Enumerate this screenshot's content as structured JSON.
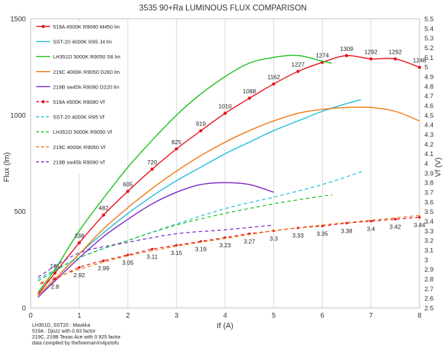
{
  "chart_data": {
    "type": "line",
    "title": "3535 90+Ra LUMINOUS FLUX COMPARISON",
    "xlabel": "If (A)",
    "ylabel": "Flux (lm)",
    "y2label": "Vf (V)",
    "xlim": [
      0,
      8
    ],
    "ylim": [
      0,
      1500
    ],
    "y2lim": [
      2.5,
      5.5
    ],
    "xticks": [
      "0",
      "1",
      "2",
      "3",
      "4",
      "5",
      "6",
      "7",
      "8"
    ],
    "yticks": [
      "0",
      "500",
      "1000",
      "1500"
    ],
    "y2ticks": [
      "2.5",
      "2.6",
      "2.7",
      "2.8",
      "2.9",
      "3",
      "3.1",
      "3.2",
      "3.3",
      "3.4",
      "3.5",
      "3.6",
      "3.7",
      "3.8",
      "3.9",
      "4",
      "4.1",
      "4.2",
      "4.3",
      "4.4",
      "4.5",
      "4.6",
      "4.7",
      "4.8",
      "4.9",
      "5",
      "5.1",
      "5.2",
      "5.3",
      "5.4",
      "5.5"
    ],
    "grid": "vertical",
    "legend_position": "top-left",
    "series": [
      {
        "name": "519A 4500K R9080 M450 lm",
        "axis": "flux",
        "color": "#e8141c",
        "dash": false,
        "markers": true,
        "x": [
          0.15,
          0.5,
          1,
          1.5,
          2,
          2.5,
          3,
          3.5,
          4,
          4.5,
          5,
          5.5,
          6,
          6.5,
          7,
          7.5,
          8
        ],
        "y": [
          70,
          181,
          338,
          482,
          605,
          720,
          825,
          919,
          1010,
          1088,
          1162,
          1227,
          1274,
          1309,
          1292,
          1292,
          1248
        ],
        "labels": [
          "",
          "181",
          "338",
          "482",
          "605",
          "720",
          "825",
          "919",
          "1010",
          "1088",
          "1162",
          "1227",
          "1274",
          "1309",
          "1292",
          "1292",
          "1248"
        ]
      },
      {
        "name": "SST-20 4000K R95 J4 lm",
        "axis": "flux",
        "color": "#22bde0",
        "dash": false,
        "markers": false,
        "x": [
          0.15,
          0.5,
          1,
          1.5,
          2,
          2.5,
          3,
          3.5,
          4,
          4.5,
          5,
          5.5,
          6,
          6.5,
          6.8
        ],
        "y": [
          65,
          150,
          280,
          390,
          490,
          580,
          660,
          730,
          800,
          860,
          920,
          970,
          1020,
          1060,
          1080
        ]
      },
      {
        "name": "LH351D 5000K R9050 S6 lm",
        "axis": "flux",
        "color": "#1ec21e",
        "dash": false,
        "markers": false,
        "x": [
          0.15,
          0.5,
          1,
          1.5,
          2,
          2.5,
          3,
          3.5,
          4,
          4.5,
          5,
          5.5,
          6,
          6.2
        ],
        "y": [
          80,
          200,
          400,
          570,
          730,
          870,
          1000,
          1110,
          1200,
          1270,
          1300,
          1310,
          1280,
          1270
        ]
      },
      {
        "name": "219C 4000K R9050 D260 lm",
        "axis": "flux",
        "color": "#f07a12",
        "dash": false,
        "markers": false,
        "x": [
          0.15,
          0.5,
          1,
          1.5,
          2,
          2.5,
          3,
          3.5,
          4,
          4.5,
          5,
          5.5,
          6,
          6.5,
          7,
          7.5,
          8
        ],
        "y": [
          65,
          150,
          280,
          410,
          520,
          620,
          710,
          790,
          860,
          920,
          970,
          1010,
          1030,
          1040,
          1040,
          1020,
          970
        ]
      },
      {
        "name": "219B sw45k R9080 D220 lm",
        "axis": "flux",
        "color": "#7a28c8",
        "dash": false,
        "markers": false,
        "x": [
          0.15,
          0.5,
          1,
          1.5,
          2,
          2.5,
          3,
          3.5,
          4,
          4.5,
          5
        ],
        "y": [
          55,
          140,
          260,
          370,
          460,
          540,
          600,
          640,
          650,
          640,
          600
        ]
      },
      {
        "name": "519A 4500K R9080 Vf",
        "axis": "vf",
        "color": "#e8141c",
        "dash": true,
        "markers": true,
        "x": [
          0.2,
          0.5,
          1,
          1.5,
          2,
          2.5,
          3,
          3.5,
          4,
          4.5,
          5,
          5.5,
          6,
          6.5,
          7,
          7.5,
          8
        ],
        "y": [
          2.75,
          2.8,
          2.92,
          2.99,
          3.05,
          3.11,
          3.15,
          3.19,
          3.23,
          3.27,
          3.3,
          3.33,
          3.35,
          3.38,
          3.4,
          3.42,
          3.44
        ],
        "labels": [
          "",
          "2.8",
          "2.92",
          "2.99",
          "3.05",
          "3.11",
          "3.15",
          "3.19",
          "3.23",
          "3.27",
          "3.3",
          "3.33",
          "3.35",
          "3.38",
          "3.4",
          "3.42",
          "3.44"
        ]
      },
      {
        "name": "SST-20 4000K R95 Vf",
        "axis": "vf",
        "color": "#22bde0",
        "dash": true,
        "markers": false,
        "x": [
          0.15,
          1,
          2,
          3,
          4,
          5,
          6,
          6.85
        ],
        "y": [
          2.8,
          3.02,
          3.2,
          3.37,
          3.53,
          3.65,
          3.78,
          3.92
        ]
      },
      {
        "name": "LH351D 5000K R9050 Vf",
        "axis": "vf",
        "color": "#1ec21e",
        "dash": true,
        "markers": false,
        "x": [
          0.15,
          1,
          2,
          3,
          4,
          5,
          6,
          6.2
        ],
        "y": [
          2.78,
          3.02,
          3.2,
          3.36,
          3.48,
          3.58,
          3.66,
          3.67
        ]
      },
      {
        "name": "219C 4000K R9050 Vf",
        "axis": "vf",
        "color": "#f07a12",
        "dash": true,
        "markers": false,
        "x": [
          0.2,
          1,
          2,
          3,
          4,
          5,
          6,
          7,
          8
        ],
        "y": [
          2.76,
          2.9,
          3.04,
          3.14,
          3.22,
          3.3,
          3.36,
          3.41,
          3.46
        ]
      },
      {
        "name": "219B sw45k R9080 Vf",
        "axis": "vf",
        "color": "#7a28c8",
        "dash": true,
        "markers": false,
        "x": [
          0.15,
          1,
          2,
          3,
          4,
          5
        ],
        "y": [
          2.82,
          3.07,
          3.18,
          3.27,
          3.31,
          3.36
        ]
      }
    ]
  },
  "notes": [
    "LH351D, SST20 : Maukka",
    "519A : Djozz with 0.93 factor",
    "219C, 219B Texas Ace with 0.925 factor",
    "data compiled by thefreeman/m4potofu"
  ]
}
